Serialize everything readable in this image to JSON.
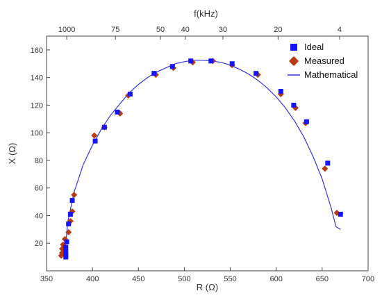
{
  "chart_data": {
    "type": "scatter",
    "title": "",
    "xlabel": "R (Ω)",
    "ylabel": "X (Ω)",
    "top_axis_label": "f(kHz)",
    "xlim": [
      350,
      700
    ],
    "ylim": [
      0,
      170
    ],
    "xticks": [
      350,
      400,
      450,
      500,
      550,
      600,
      650,
      700
    ],
    "yticks": [
      20,
      40,
      60,
      80,
      100,
      120,
      140,
      160
    ],
    "top_ticks": [
      {
        "label": "1000",
        "x": 372
      },
      {
        "label": "75",
        "x": 425
      },
      {
        "label": "50",
        "x": 474
      },
      {
        "label": "40",
        "x": 501
      },
      {
        "label": "30",
        "x": 542
      },
      {
        "label": "20",
        "x": 602
      },
      {
        "label": "4",
        "x": 669
      }
    ],
    "grid": false,
    "legend_position": "top-right",
    "series": [
      {
        "name": "Ideal",
        "marker": "square",
        "color": "#1515ff",
        "points": [
          [
            371,
            10
          ],
          [
            371,
            12
          ],
          [
            371,
            14
          ],
          [
            371,
            17
          ],
          [
            372,
            21
          ],
          [
            374,
            34
          ],
          [
            376,
            41
          ],
          [
            378,
            51
          ],
          [
            403,
            94
          ],
          [
            413,
            104
          ],
          [
            427,
            115
          ],
          [
            441,
            128
          ],
          [
            467,
            143
          ],
          [
            487,
            148
          ],
          [
            507,
            152
          ],
          [
            529,
            152
          ],
          [
            552,
            150
          ],
          [
            578,
            143
          ],
          [
            605,
            130
          ],
          [
            619,
            120
          ],
          [
            633,
            108
          ],
          [
            656,
            78
          ],
          [
            670,
            41
          ]
        ]
      },
      {
        "name": "Measured",
        "marker": "diamond",
        "color": "#b83b10",
        "points": [
          [
            366,
            11
          ],
          [
            367,
            13
          ],
          [
            367,
            16
          ],
          [
            368,
            19
          ],
          [
            370,
            23
          ],
          [
            374,
            28
          ],
          [
            376,
            36
          ],
          [
            378,
            43
          ],
          [
            380,
            55
          ],
          [
            402,
            98
          ],
          [
            413,
            104
          ],
          [
            430,
            114
          ],
          [
            439,
            127
          ],
          [
            469,
            142
          ],
          [
            488,
            147
          ],
          [
            509,
            151
          ],
          [
            531,
            152
          ],
          [
            552,
            149
          ],
          [
            580,
            142
          ],
          [
            605,
            128
          ],
          [
            621,
            118
          ],
          [
            632,
            107
          ],
          [
            653,
            74
          ],
          [
            666,
            42
          ]
        ]
      },
      {
        "name": "Mathematical",
        "marker": "line",
        "color": "#3333dd",
        "x": [
          370,
          373,
          380,
          390,
          400,
          410,
          420,
          430,
          440,
          450,
          460,
          470,
          480,
          490,
          500,
          510,
          520,
          530,
          540,
          550,
          560,
          570,
          580,
          590,
          600,
          610,
          620,
          630,
          640,
          650,
          660,
          665,
          670
        ],
        "y": [
          12,
          35,
          57,
          77,
          91,
          103,
          113,
          121,
          129,
          135,
          140,
          144,
          147,
          150,
          151.5,
          152.5,
          152.5,
          152,
          151,
          149,
          146,
          142.5,
          138,
          132.5,
          126,
          118,
          108.5,
          97,
          83,
          66.5,
          45,
          32,
          30
        ]
      }
    ]
  }
}
